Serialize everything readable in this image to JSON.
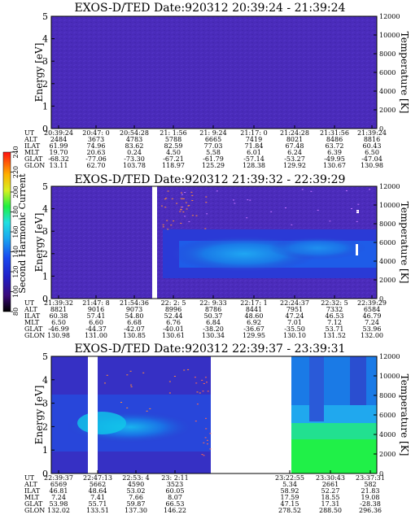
{
  "chart_data": [
    {
      "type": "heatmap",
      "title": "EXOS-D/TED   Date:920312  20:39:24 - 21:39:24",
      "ylabel": "Energy [eV]",
      "ylabel_right": "Temperature [K]",
      "ylim": [
        0,
        5
      ],
      "ylim_right": [
        0,
        12000
      ],
      "yticks": [
        "0",
        "1",
        "2",
        "3",
        "4",
        "5"
      ],
      "yticks_right": [
        "0",
        "2000",
        "4000",
        "6000",
        "8000",
        "10000",
        "12000"
      ],
      "row_labels": [
        "UT",
        "ALT",
        "ILAT",
        "MLT",
        "GLAT",
        "GLON"
      ],
      "columns": [
        [
          "20:39:24",
          "2484",
          "61.99",
          "19.70",
          "-68.32",
          "13.11"
        ],
        [
          "20:47: 0",
          "3673",
          "74.96",
          "20.63",
          "-77.06",
          "62.70"
        ],
        [
          "20:54:28",
          "4783",
          "83.62",
          "0.24",
          "-73.30",
          "103.78"
        ],
        [
          "21: 1:56",
          "5788",
          "82.59",
          "4.50",
          "-67.21",
          "118.97"
        ],
        [
          "21: 9:24",
          "6665",
          "77.03",
          "5.58",
          "-61.79",
          "125.29"
        ],
        [
          "21:17: 0",
          "7419",
          "71.84",
          "6.01",
          "-57.14",
          "128.38"
        ],
        [
          "21:24:28",
          "8021",
          "67.48",
          "6.24",
          "-53.27",
          "129.92"
        ],
        [
          "21:31:56",
          "8486",
          "63.72",
          "6.39",
          "-49.95",
          "130.67"
        ],
        [
          "21:39:24",
          "8816",
          "60.43",
          "6.50",
          "-47.04",
          "130.98"
        ]
      ],
      "features": [
        {
          "kind": "background",
          "y": [
            0,
            5
          ],
          "x": [
            0,
            1
          ],
          "level": 40
        }
      ]
    },
    {
      "type": "heatmap",
      "title": "EXOS-D/TED   Date:920312  21:39:32 - 22:39:29",
      "ylabel": "Energy [eV]",
      "ylabel_right": "Temperature [K]",
      "ylim": [
        0,
        5
      ],
      "ylim_right": [
        0,
        12000
      ],
      "yticks": [
        "0",
        "1",
        "2",
        "3",
        "4",
        "5"
      ],
      "yticks_right": [
        "0",
        "2000",
        "4000",
        "6000",
        "8000",
        "10000",
        "12000"
      ],
      "colorbar": {
        "label": "Second Harmonic Current",
        "ticks": [
          "80",
          "100",
          "120",
          "140",
          "160",
          "180",
          "200",
          "220",
          "240"
        ]
      },
      "row_labels": [
        "UT",
        "ALT",
        "ILAT",
        "MLT",
        "GLAT",
        "GLON"
      ],
      "columns": [
        [
          "21:39:32",
          "8821",
          "60.38",
          "6.50",
          "-46.99",
          "130.98"
        ],
        [
          "21:47: 8",
          "9016",
          "57.41",
          "6.60",
          "-44.37",
          "131.00"
        ],
        [
          "21:54:36",
          "9073",
          "54.80",
          "6.68",
          "-42.07",
          "130.85"
        ],
        [
          "22: 2: 5",
          "8996",
          "52.44",
          "6.76",
          "-40.01",
          "130.61"
        ],
        [
          "22: 9:33",
          "8786",
          "50.37",
          "6.84",
          "-38.20",
          "130.34"
        ],
        [
          "22:17: 1",
          "8441",
          "48.60",
          "6.92",
          "-36.67",
          "129.95"
        ],
        [
          "22:24:37",
          "7951",
          "47.24",
          "7.01",
          "-35.50",
          "130.10"
        ],
        [
          "22:32: 5",
          "7332",
          "46.53",
          "7.12",
          "53.71",
          "131.52"
        ],
        [
          "22:39:29",
          "6584",
          "46.79",
          "7.24",
          "53.96",
          "132.00"
        ]
      ],
      "features": [
        {
          "kind": "background",
          "y": [
            0,
            5
          ],
          "x": [
            0,
            1
          ],
          "level": 40
        },
        {
          "kind": "gap",
          "x": [
            0.475,
            0.49
          ]
        },
        {
          "kind": "band",
          "x": [
            0.52,
            1
          ],
          "y": [
            0.9,
            3.1
          ],
          "level": 130
        },
        {
          "kind": "band",
          "x": [
            0.52,
            1
          ],
          "y": [
            1.6,
            2.6
          ],
          "level": 150
        },
        {
          "kind": "band",
          "x": [
            0.6,
            0.85
          ],
          "y": [
            1.9,
            2.5
          ],
          "level": 165
        }
      ]
    },
    {
      "type": "heatmap",
      "title": "EXOS-D/TED   Date:920312  22:39:37 - 23:39:31",
      "ylabel": "Energy [eV]",
      "ylabel_right": "Temperature [K]",
      "ylim": [
        0,
        5
      ],
      "ylim_right": [
        0,
        12000
      ],
      "yticks": [
        "0",
        "1",
        "2",
        "3",
        "4",
        "5"
      ],
      "yticks_right": [
        "0",
        "2000",
        "4000",
        "6000",
        "8000",
        "10000",
        "12000"
      ],
      "row_labels": [
        "UT",
        "ALT",
        "ILAT",
        "MLT",
        "GLAT",
        "GLON"
      ],
      "columns": [
        [
          "22:39:37",
          "6569",
          "46.81",
          "7.24",
          "53.98",
          "132.02"
        ],
        [
          "22:47:13",
          "5662",
          "48.64",
          "7.41",
          "55.71",
          "133.51"
        ],
        [
          "22:53: 4",
          "4590",
          "53.02",
          "7.66",
          "59.87",
          "137.30"
        ],
        [
          "23: 2:11",
          "3523",
          "60.05",
          "8.07",
          "66.53",
          "146.22"
        ],
        [
          "23:22:55",
          "5.34",
          "58.92",
          "17.59",
          "47.15",
          "278.52"
        ],
        [
          "23:30:43",
          "2661",
          "52.27",
          "18.55",
          "17.31",
          "288.50"
        ],
        [
          "23:37:31",
          "582",
          "21.83",
          "19.08",
          "-28.38",
          "296.36"
        ]
      ],
      "features": [
        {
          "kind": "data-extent",
          "x": [
            0,
            0.45
          ]
        },
        {
          "kind": "data-extent",
          "x": [
            0.78,
            1
          ]
        }
      ]
    }
  ]
}
